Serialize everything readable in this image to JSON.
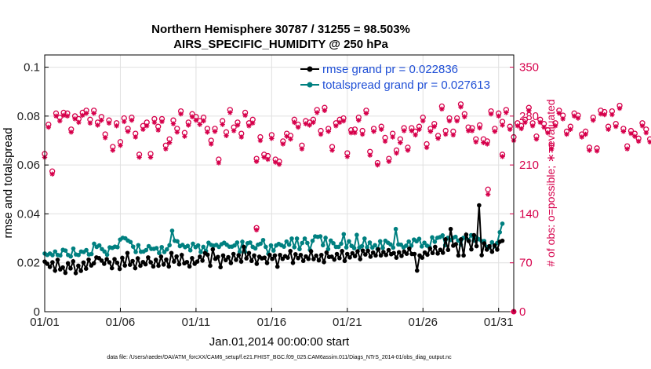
{
  "chart_data": {
    "type": "line",
    "title": "Northern Hemisphere 30787 / 31255 = 98.503%",
    "subtitle": "AIRS_SPECIFIC_HUMIDITY @ 250 hPa",
    "xlabel": "Jan.01,2014 00:00:00 start",
    "ylabel": "rmse and totalspread",
    "ylabel_right": "# of obs: o=possible; ∗=evaluated",
    "footnote": "data file: /Users/raeder/DAI/ATM_forcXX/CAM6_setup/f.e21.FHIST_BGC.f09_025.CAM6assim.011/Diags_NTrS_2014-01/obs_diag_output.nc",
    "x_ticks": [
      {
        "day": 1,
        "label": "01/01"
      },
      {
        "day": 6,
        "label": "01/06"
      },
      {
        "day": 11,
        "label": "01/11"
      },
      {
        "day": 16,
        "label": "01/16"
      },
      {
        "day": 21,
        "label": "01/21"
      },
      {
        "day": 26,
        "label": "01/26"
      },
      {
        "day": 31,
        "label": "01/31"
      }
    ],
    "xlim": [
      1,
      32
    ],
    "ylim": [
      0,
      0.105
    ],
    "y_ticks": [
      {
        "value": 0,
        "label": "0"
      },
      {
        "value": 0.02,
        "label": "0.02"
      },
      {
        "value": 0.04,
        "label": "0.04"
      },
      {
        "value": 0.06,
        "label": "0.06"
      },
      {
        "value": 0.08,
        "label": "0.08"
      },
      {
        "value": 0.1,
        "label": "0.1"
      }
    ],
    "ylim_right": [
      0,
      367.5
    ],
    "y_ticks_right": [
      {
        "value": 0,
        "label": "0"
      },
      {
        "value": 70,
        "label": "70"
      },
      {
        "value": 140,
        "label": "140"
      },
      {
        "value": 210,
        "label": "210"
      },
      {
        "value": 280,
        "label": "280"
      },
      {
        "value": 350,
        "label": "350"
      }
    ],
    "grid": true,
    "legend_position": "top-right",
    "colors": {
      "rmse": "#000000",
      "spread": "#008080",
      "obs": "#d6004b",
      "legend_text": "#1f4fd6",
      "grid": "#e0e0e0"
    },
    "series": [
      {
        "name": "rmse grand pr = 0.022836",
        "key": "rmse",
        "values": [
          0.0205,
          0.0196,
          0.0183,
          0.0202,
          0.0168,
          0.0212,
          0.0173,
          0.0181,
          0.0159,
          0.0198,
          0.0177,
          0.0206,
          0.0158,
          0.0188,
          0.0167,
          0.0201,
          0.0176,
          0.0213,
          0.0189,
          0.0198,
          0.0222,
          0.0219,
          0.0209,
          0.0196,
          0.0215,
          0.0202,
          0.0178,
          0.0215,
          0.02,
          0.0175,
          0.022,
          0.0189,
          0.024,
          0.0192,
          0.0207,
          0.0178,
          0.0218,
          0.0188,
          0.0203,
          0.0194,
          0.0222,
          0.0202,
          0.0185,
          0.0212,
          0.0188,
          0.0225,
          0.0193,
          0.0213,
          0.0185,
          0.024,
          0.0205,
          0.0226,
          0.0194,
          0.0232,
          0.0198,
          0.0203,
          0.0185,
          0.0219,
          0.0196,
          0.0205,
          0.0225,
          0.0209,
          0.024,
          0.0233,
          0.0188,
          0.0255,
          0.0216,
          0.0224,
          0.0182,
          0.023,
          0.0211,
          0.0223,
          0.0199,
          0.0236,
          0.0212,
          0.0231,
          0.0205,
          0.0265,
          0.0218,
          0.024,
          0.0208,
          0.023,
          0.0196,
          0.0225,
          0.0218,
          0.0221,
          0.0199,
          0.0232,
          0.0216,
          0.023,
          0.0184,
          0.0232,
          0.0216,
          0.0227,
          0.0221,
          0.0248,
          0.02,
          0.0235,
          0.0219,
          0.0232,
          0.0208,
          0.0226,
          0.0216,
          0.0247,
          0.0215,
          0.0229,
          0.021,
          0.0232,
          0.0203,
          0.0242,
          0.0224,
          0.0225,
          0.0213,
          0.0236,
          0.0219,
          0.0248,
          0.0208,
          0.0236,
          0.0222,
          0.0239,
          0.0227,
          0.0247,
          0.0215,
          0.025,
          0.0234,
          0.0249,
          0.0225,
          0.0242,
          0.023,
          0.0255,
          0.023,
          0.0244,
          0.0232,
          0.0252,
          0.0235,
          0.024,
          0.0221,
          0.0243,
          0.0228,
          0.0246,
          0.0237,
          0.0258,
          0.0236,
          0.0236,
          0.0168,
          0.023,
          0.0221,
          0.0242,
          0.0233,
          0.0258,
          0.024,
          0.0265,
          0.0238,
          0.0253,
          0.0241,
          0.0296,
          0.0253,
          0.0338,
          0.027,
          0.0276,
          0.023,
          0.0296,
          0.023,
          0.0315,
          0.0289,
          0.0255,
          0.0313,
          0.0268,
          0.0435,
          0.0231,
          0.0279,
          0.0254,
          0.0268,
          0.0245,
          0.0271,
          0.0254,
          0.0286,
          0.029
        ]
      },
      {
        "name": "totalspread grand pr = 0.027613",
        "key": "spread",
        "values": [
          0.0238,
          0.0232,
          0.0238,
          0.0231,
          0.0246,
          0.0232,
          0.023,
          0.0253,
          0.025,
          0.0232,
          0.0226,
          0.0258,
          0.0234,
          0.0232,
          0.0246,
          0.0244,
          0.0252,
          0.0234,
          0.0236,
          0.0278,
          0.0265,
          0.0271,
          0.0256,
          0.0246,
          0.0233,
          0.0263,
          0.0261,
          0.0266,
          0.0264,
          0.0295,
          0.0302,
          0.03,
          0.0291,
          0.0285,
          0.0266,
          0.0244,
          0.0272,
          0.0245,
          0.0246,
          0.0252,
          0.0268,
          0.0257,
          0.0257,
          0.026,
          0.024,
          0.0264,
          0.0244,
          0.0255,
          0.0272,
          0.0331,
          0.029,
          0.0288,
          0.0268,
          0.0273,
          0.0264,
          0.0269,
          0.0251,
          0.0278,
          0.0264,
          0.0271,
          0.0244,
          0.0265,
          0.0248,
          0.0282,
          0.0273,
          0.027,
          0.0273,
          0.0265,
          0.0276,
          0.0282,
          0.0274,
          0.0266,
          0.0266,
          0.0271,
          0.0283,
          0.0245,
          0.0286,
          0.0245,
          0.028,
          0.0283,
          0.0265,
          0.0259,
          0.0274,
          0.0278,
          0.0293,
          0.0265,
          0.0237,
          0.0271,
          0.025,
          0.0271,
          0.0277,
          0.0272,
          0.0266,
          0.0287,
          0.0274,
          0.0299,
          0.0264,
          0.0299,
          0.0256,
          0.0281,
          0.0299,
          0.0281,
          0.0253,
          0.029,
          0.0308,
          0.0306,
          0.0308,
          0.0272,
          0.0302,
          0.0256,
          0.0291,
          0.028,
          0.0265,
          0.0265,
          0.0278,
          0.0317,
          0.0263,
          0.0288,
          0.0269,
          0.026,
          0.0314,
          0.0262,
          0.0268,
          0.0299,
          0.0263,
          0.0283,
          0.0262,
          0.0272,
          0.0256,
          0.0288,
          0.0261,
          0.029,
          0.0282,
          0.0275,
          0.0262,
          0.0338,
          0.0275,
          0.0274,
          0.0263,
          0.027,
          0.0287,
          0.027,
          0.0295,
          0.0288,
          0.0298,
          0.0267,
          0.0282,
          0.027,
          0.0264,
          0.0304,
          0.0286,
          0.0302,
          0.0305,
          0.0312,
          0.0272,
          0.0302,
          0.0293,
          0.0302,
          0.0306,
          0.0291,
          0.0274,
          0.0302,
          0.0302,
          0.0293,
          0.0313,
          0.0291,
          0.0305,
          0.0296,
          0.0289,
          0.0289,
          0.0265,
          0.0263,
          0.0284,
          0.0267,
          0.0281,
          0.0325,
          0.036
        ]
      }
    ],
    "obs": {
      "name": "# of obs",
      "step_days": 0.25,
      "possible": [
        226,
        268,
        201,
        284,
        278,
        285,
        284,
        261,
        280,
        276,
        285,
        288,
        275,
        288,
        271,
        279,
        254,
        274,
        236,
        270,
        243,
        277,
        262,
        278,
        255,
        225,
        266,
        271,
        226,
        276,
        265,
        276,
        238,
        247,
        274,
        262,
        287,
        256,
        271,
        283,
        279,
        273,
        278,
        262,
        245,
        262,
        218,
        273,
        257,
        289,
        264,
        271,
        255,
        285,
        270,
        275,
        219,
        250,
        225,
        223,
        253,
        218,
        215,
        244,
        255,
        252,
        275,
        268,
        238,
        273,
        271,
        275,
        289,
        259,
        292,
        262,
        236,
        270,
        275,
        277,
        227,
        260,
        261,
        278,
        259,
        288,
        229,
        262,
        213,
        265,
        249,
        219,
        255,
        231,
        247,
        263,
        235,
        263,
        258,
        265,
        278,
        240,
        262,
        269,
        252,
        294,
        259,
        277,
        258,
        277,
        297,
        283,
        264,
        263,
        247,
        267,
        247,
        244,
        287,
        262,
        284,
        272,
        289,
        265,
        250,
        270,
        266,
        275,
        292,
        270,
        251,
        275,
        269,
        260,
        238,
        270,
        288,
        281,
        258,
        265,
        284,
        281,
        254,
        258,
        235,
        278,
        234,
        288,
        286,
        265,
        287,
        269,
        295,
        262,
        237,
        259,
        255,
        248,
        270,
        261,
        247,
        242,
        254,
        233,
        276,
        222,
        268,
        219,
        209,
        222,
        214,
        249,
        256,
        278,
        278,
        218,
        218,
        209,
        221,
        218,
        219,
        216
      ],
      "evaluated": [
        221,
        264,
        197,
        280,
        273,
        281,
        280,
        257,
        276,
        271,
        281,
        284,
        270,
        284,
        267,
        274,
        249,
        270,
        231,
        266,
        238,
        272,
        258,
        274,
        250,
        221,
        261,
        266,
        221,
        271,
        260,
        272,
        233,
        242,
        269,
        257,
        283,
        251,
        267,
        279,
        274,
        268,
        273,
        257,
        240,
        258,
        213,
        268,
        252,
        285,
        259,
        267,
        250,
        281,
        266,
        270,
        215,
        245,
        221,
        218,
        248,
        214,
        211,
        240,
        251,
        247,
        271,
        264,
        233,
        269,
        267,
        271,
        285,
        254,
        288,
        258,
        231,
        266,
        271,
        273,
        222,
        256,
        256,
        274,
        254,
        284,
        224,
        258,
        210,
        261,
        244,
        215,
        250,
        227,
        242,
        259,
        231,
        259,
        253,
        261,
        273,
        235,
        258,
        265,
        248,
        290,
        254,
        273,
        253,
        273,
        293,
        279,
        259,
        259,
        243,
        263,
        242,
        240,
        283,
        258,
        280,
        267,
        285,
        261,
        245,
        266,
        262,
        271,
        288,
        266,
        247,
        271,
        264,
        256,
        233,
        266,
        284,
        276,
        254,
        261,
        280,
        277,
        250,
        254,
        231,
        274,
        230,
        283,
        282,
        261,
        282,
        265,
        291,
        258,
        233,
        255,
        251,
        244,
        266,
        256,
        243,
        237,
        250,
        228,
        272,
        217,
        264,
        215,
        205,
        218,
        210,
        245,
        251,
        274,
        274,
        214,
        214,
        205,
        217,
        214,
        215,
        212
      ],
      "outliers": [
        {
          "day": 15.0,
          "possible": 120,
          "evaluated": 117
        },
        {
          "day": 30.3,
          "possible": 175,
          "evaluated": 168
        },
        {
          "day": 31.25,
          "possible": 225,
          "evaluated": 222
        }
      ]
    }
  }
}
